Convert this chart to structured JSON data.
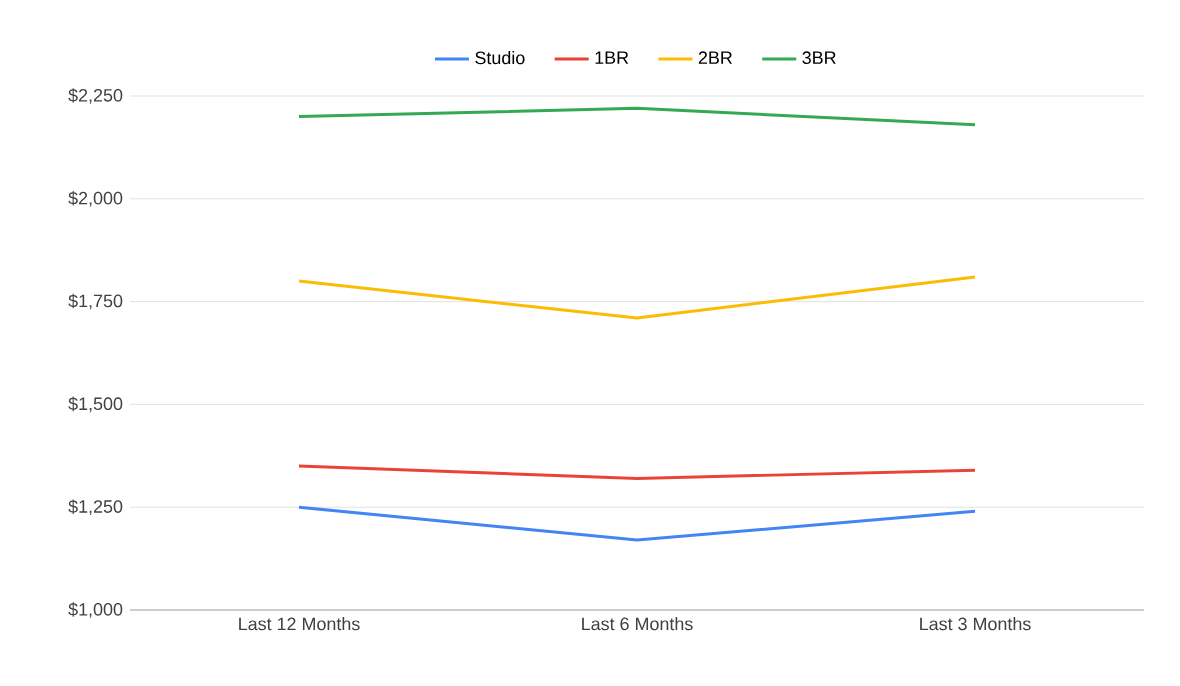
{
  "chart_data": {
    "type": "line",
    "categories": [
      "Last 12 Months",
      "Last 6 Months",
      "Last 3 Months"
    ],
    "series": [
      {
        "name": "Studio",
        "color": "#4285f4",
        "values": [
          1250,
          1170,
          1240
        ]
      },
      {
        "name": "1BR",
        "color": "#ea4335",
        "values": [
          1350,
          1320,
          1340
        ]
      },
      {
        "name": "2BR",
        "color": "#fbbc04",
        "values": [
          1800,
          1710,
          1810
        ]
      },
      {
        "name": "3BR",
        "color": "#34a853",
        "values": [
          2200,
          2220,
          2180
        ]
      }
    ],
    "ylim": [
      1000,
      2250
    ],
    "yticks": [
      {
        "value": 1000,
        "label": "$1,000"
      },
      {
        "value": 1250,
        "label": "$1,250"
      },
      {
        "value": 1500,
        "label": "$1,500"
      },
      {
        "value": 1750,
        "label": "$1,750"
      },
      {
        "value": 2000,
        "label": "$2,000"
      },
      {
        "value": 2250,
        "label": "$2,250"
      }
    ],
    "grid": "y",
    "legend": "top"
  }
}
